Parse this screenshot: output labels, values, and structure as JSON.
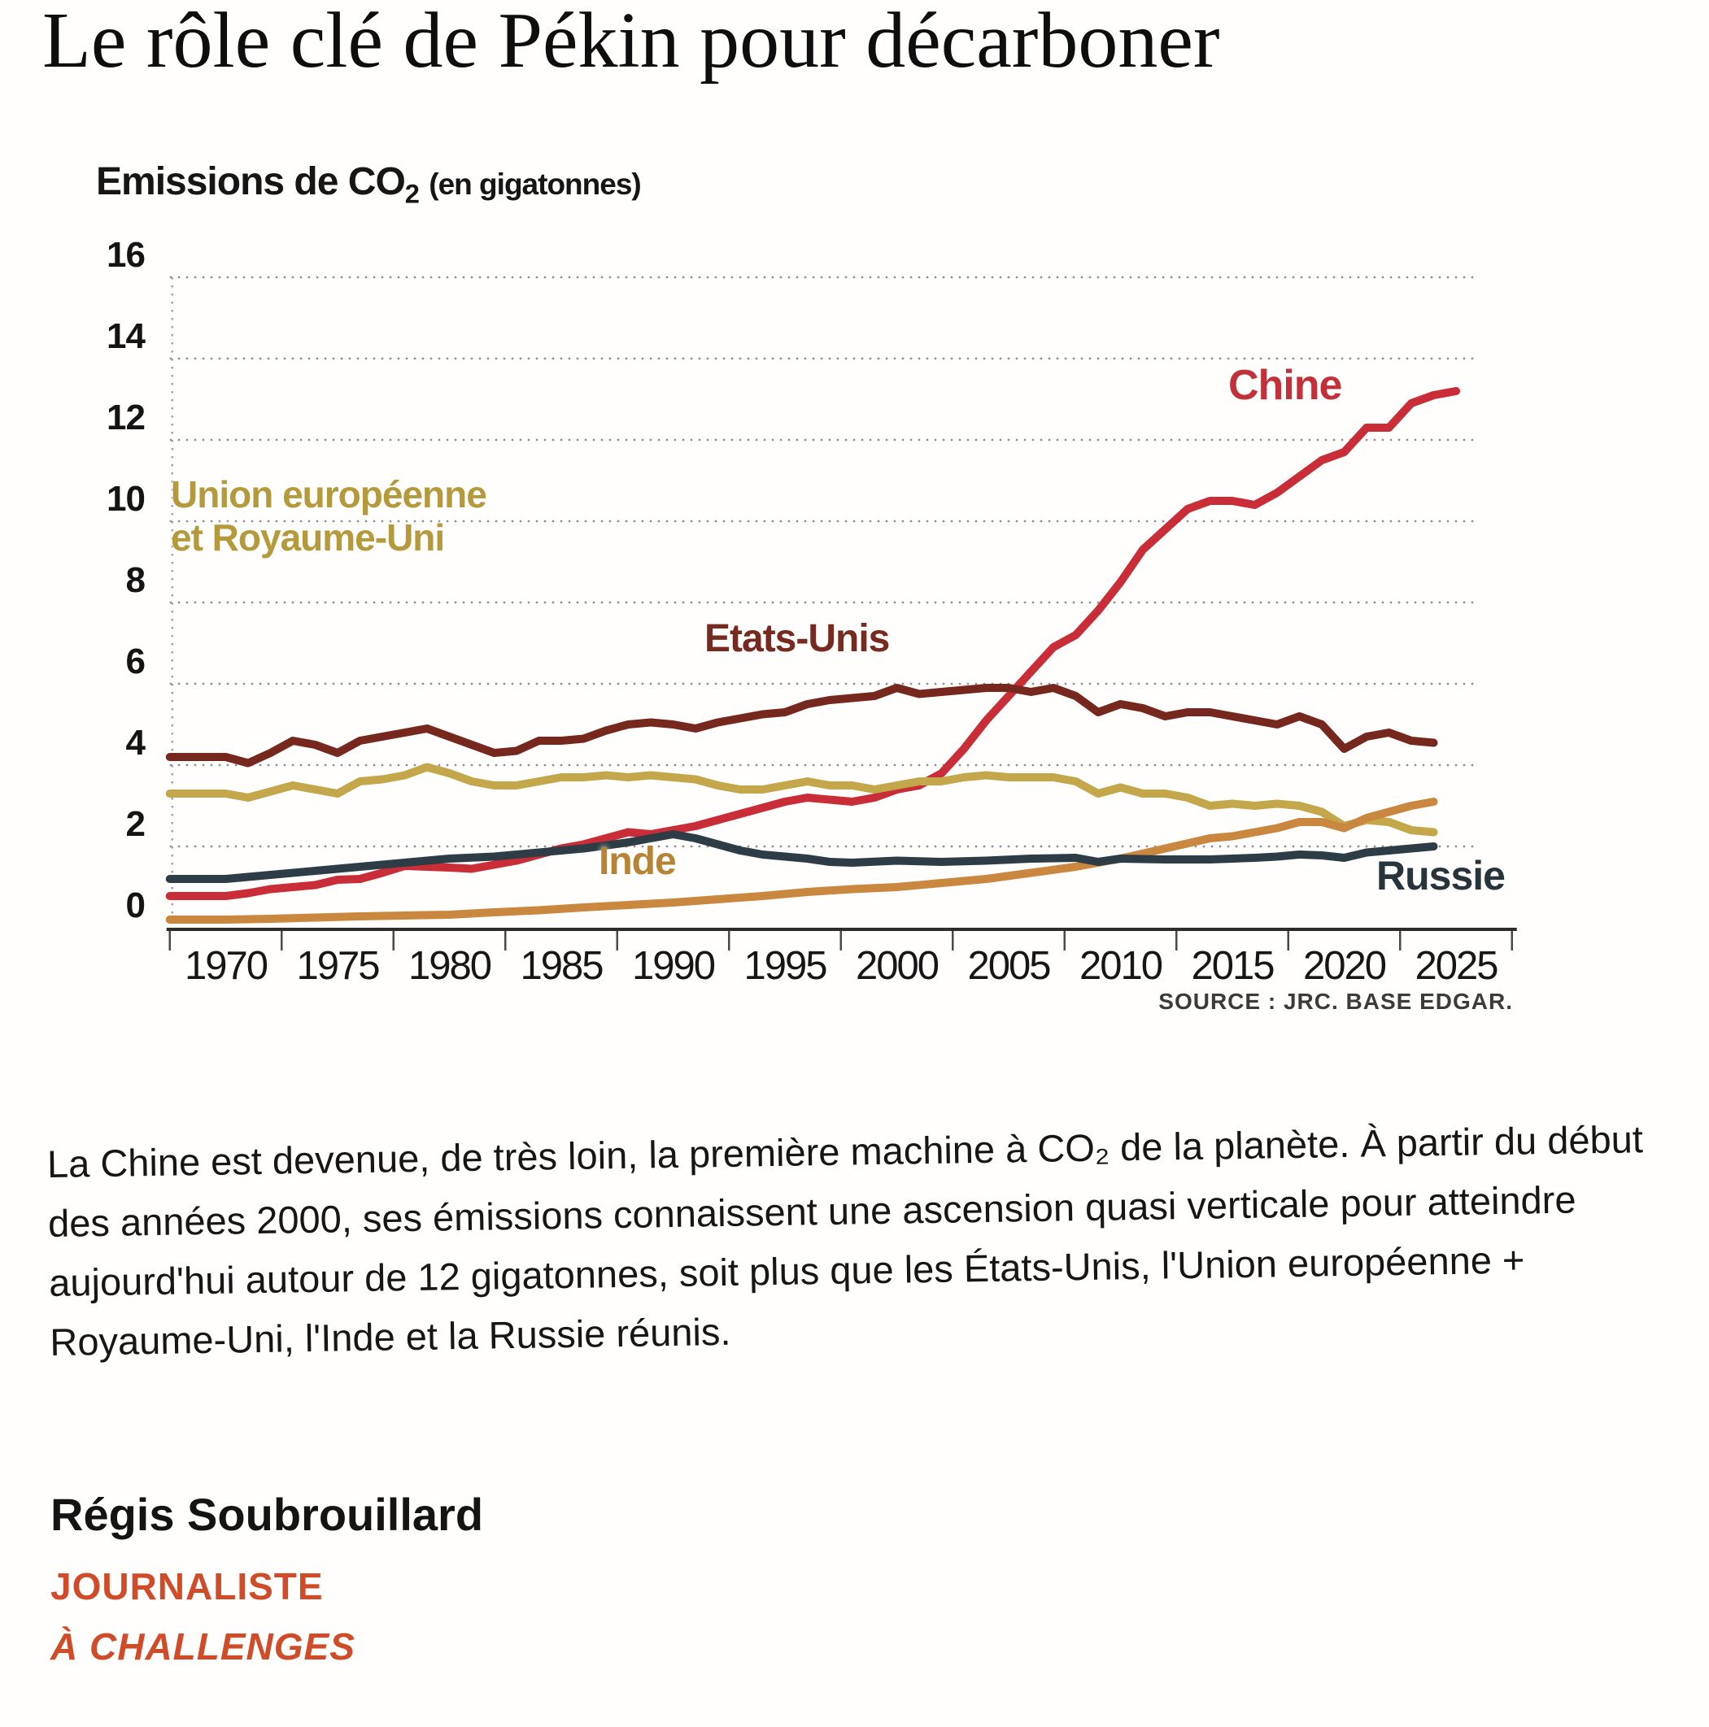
{
  "article": {
    "title": "Le rôle clé de Pékin pour décarboner",
    "paragraph": "La Chine est devenue, de très loin, la première machine à CO₂ de la planète. À partir du début des années 2000, ses émissions connaissent une ascension quasi verticale pour atteindre aujourd'hui autour de 12 gigatonnes, soit plus que les États-Unis, l'Union européenne + Royaume-Uni, l'Inde et la Russie réunis.",
    "author": {
      "name": "Régis Soubrouillard",
      "role": "JOURNALISTE",
      "affiliation": "À CHALLENGES"
    }
  },
  "chart": {
    "title_prefix": "Emissions de CO",
    "title_sub": "2",
    "unit_note": "(en gigatonnes)",
    "source": "SOURCE : JRC. BASE EDGAR."
  },
  "chart_data": {
    "type": "line",
    "title": "Emissions de CO2 (en gigatonnes)",
    "xlabel": "",
    "ylabel": "Emissions de CO2 (gigatonnes)",
    "ylim": [
      0,
      16
    ],
    "y_ticks": [
      0,
      2,
      4,
      6,
      8,
      10,
      12,
      14,
      16
    ],
    "x_ticks": [
      1970,
      1975,
      1980,
      1985,
      1990,
      1995,
      2000,
      2005,
      2010,
      2015,
      2020,
      2025
    ],
    "grid": "horizontal dotted",
    "legend_position": "inline labels on lines",
    "source": "SOURCE : JRC. BASE EDGAR.",
    "series": [
      {
        "id": "chine",
        "label": "Chine",
        "color": "#c92d37",
        "points": [
          [
            1970,
            0.78
          ],
          [
            1971,
            0.85
          ],
          [
            1972,
            0.95
          ],
          [
            1973,
            1.0
          ],
          [
            1974,
            1.05
          ],
          [
            1975,
            1.18
          ],
          [
            1976,
            1.2
          ],
          [
            1977,
            1.35
          ],
          [
            1978,
            1.52
          ],
          [
            1979,
            1.5
          ],
          [
            1980,
            1.48
          ],
          [
            1981,
            1.45
          ],
          [
            1982,
            1.55
          ],
          [
            1983,
            1.65
          ],
          [
            1984,
            1.8
          ],
          [
            1985,
            1.95
          ],
          [
            1986,
            2.05
          ],
          [
            1987,
            2.2
          ],
          [
            1988,
            2.35
          ],
          [
            1989,
            2.3
          ],
          [
            1990,
            2.4
          ],
          [
            1991,
            2.5
          ],
          [
            1992,
            2.65
          ],
          [
            1993,
            2.8
          ],
          [
            1994,
            2.95
          ],
          [
            1995,
            3.1
          ],
          [
            1996,
            3.2
          ],
          [
            1997,
            3.15
          ],
          [
            1998,
            3.1
          ],
          [
            1999,
            3.2
          ],
          [
            2000,
            3.4
          ],
          [
            2001,
            3.5
          ],
          [
            2002,
            3.8
          ],
          [
            2003,
            4.4
          ],
          [
            2004,
            5.1
          ],
          [
            2005,
            5.7
          ],
          [
            2006,
            6.3
          ],
          [
            2007,
            6.9
          ],
          [
            2008,
            7.2
          ],
          [
            2009,
            7.8
          ],
          [
            2010,
            8.5
          ],
          [
            2011,
            9.3
          ],
          [
            2012,
            9.8
          ],
          [
            2013,
            10.3
          ],
          [
            2014,
            10.5
          ],
          [
            2015,
            10.5
          ],
          [
            2016,
            10.4
          ],
          [
            2017,
            10.7
          ],
          [
            2018,
            11.1
          ],
          [
            2019,
            11.5
          ],
          [
            2020,
            11.7
          ],
          [
            2021,
            12.3
          ],
          [
            2022,
            12.3
          ],
          [
            2023,
            12.9
          ],
          [
            2024,
            13.1
          ],
          [
            2025,
            13.2
          ]
        ]
      },
      {
        "id": "etats-unis",
        "label": "Etats-Unis",
        "color": "#76281e",
        "points": [
          [
            1970,
            4.2
          ],
          [
            1971,
            4.05
          ],
          [
            1972,
            4.3
          ],
          [
            1973,
            4.6
          ],
          [
            1974,
            4.5
          ],
          [
            1975,
            4.3
          ],
          [
            1976,
            4.6
          ],
          [
            1977,
            4.7
          ],
          [
            1978,
            4.8
          ],
          [
            1979,
            4.9
          ],
          [
            1980,
            4.7
          ],
          [
            1981,
            4.5
          ],
          [
            1982,
            4.3
          ],
          [
            1983,
            4.35
          ],
          [
            1984,
            4.6
          ],
          [
            1985,
            4.6
          ],
          [
            1986,
            4.65
          ],
          [
            1987,
            4.85
          ],
          [
            1988,
            5.0
          ],
          [
            1989,
            5.05
          ],
          [
            1990,
            5.0
          ],
          [
            1991,
            4.9
          ],
          [
            1992,
            5.05
          ],
          [
            1993,
            5.15
          ],
          [
            1994,
            5.25
          ],
          [
            1995,
            5.3
          ],
          [
            1996,
            5.5
          ],
          [
            1997,
            5.6
          ],
          [
            1998,
            5.65
          ],
          [
            1999,
            5.7
          ],
          [
            2000,
            5.9
          ],
          [
            2001,
            5.75
          ],
          [
            2002,
            5.8
          ],
          [
            2003,
            5.85
          ],
          [
            2004,
            5.9
          ],
          [
            2005,
            5.9
          ],
          [
            2006,
            5.8
          ],
          [
            2007,
            5.9
          ],
          [
            2008,
            5.7
          ],
          [
            2009,
            5.3
          ],
          [
            2010,
            5.5
          ],
          [
            2011,
            5.4
          ],
          [
            2012,
            5.2
          ],
          [
            2013,
            5.3
          ],
          [
            2014,
            5.3
          ],
          [
            2015,
            5.2
          ],
          [
            2016,
            5.1
          ],
          [
            2017,
            5.0
          ],
          [
            2018,
            5.2
          ],
          [
            2019,
            5.0
          ],
          [
            2020,
            4.4
          ],
          [
            2021,
            4.7
          ],
          [
            2022,
            4.8
          ],
          [
            2023,
            4.6
          ],
          [
            2024,
            4.55
          ]
        ]
      },
      {
        "id": "ue-royaume-uni",
        "label": "Union européenne\net Royaume-Uni",
        "color": "#c3a74a",
        "points": [
          [
            1970,
            3.3
          ],
          [
            1971,
            3.2
          ],
          [
            1972,
            3.35
          ],
          [
            1973,
            3.5
          ],
          [
            1974,
            3.4
          ],
          [
            1975,
            3.3
          ],
          [
            1976,
            3.6
          ],
          [
            1977,
            3.65
          ],
          [
            1978,
            3.75
          ],
          [
            1979,
            3.95
          ],
          [
            1980,
            3.8
          ],
          [
            1981,
            3.6
          ],
          [
            1982,
            3.5
          ],
          [
            1983,
            3.5
          ],
          [
            1984,
            3.6
          ],
          [
            1985,
            3.7
          ],
          [
            1986,
            3.7
          ],
          [
            1987,
            3.75
          ],
          [
            1988,
            3.7
          ],
          [
            1989,
            3.75
          ],
          [
            1990,
            3.7
          ],
          [
            1991,
            3.65
          ],
          [
            1992,
            3.5
          ],
          [
            1993,
            3.4
          ],
          [
            1994,
            3.4
          ],
          [
            1995,
            3.5
          ],
          [
            1996,
            3.6
          ],
          [
            1997,
            3.5
          ],
          [
            1998,
            3.5
          ],
          [
            1999,
            3.4
          ],
          [
            2000,
            3.5
          ],
          [
            2001,
            3.6
          ],
          [
            2002,
            3.6
          ],
          [
            2003,
            3.7
          ],
          [
            2004,
            3.75
          ],
          [
            2005,
            3.7
          ],
          [
            2006,
            3.7
          ],
          [
            2007,
            3.7
          ],
          [
            2008,
            3.6
          ],
          [
            2009,
            3.3
          ],
          [
            2010,
            3.45
          ],
          [
            2011,
            3.3
          ],
          [
            2012,
            3.3
          ],
          [
            2013,
            3.2
          ],
          [
            2014,
            3.0
          ],
          [
            2015,
            3.05
          ],
          [
            2016,
            3.0
          ],
          [
            2017,
            3.05
          ],
          [
            2018,
            3.0
          ],
          [
            2019,
            2.85
          ],
          [
            2020,
            2.5
          ],
          [
            2021,
            2.65
          ],
          [
            2022,
            2.6
          ],
          [
            2023,
            2.4
          ],
          [
            2024,
            2.35
          ]
        ]
      },
      {
        "id": "inde",
        "label": "Inde",
        "color": "#c9873f",
        "points": [
          [
            1970,
            0.2
          ],
          [
            1972,
            0.22
          ],
          [
            1974,
            0.25
          ],
          [
            1976,
            0.28
          ],
          [
            1978,
            0.3
          ],
          [
            1980,
            0.32
          ],
          [
            1982,
            0.38
          ],
          [
            1984,
            0.43
          ],
          [
            1986,
            0.5
          ],
          [
            1988,
            0.56
          ],
          [
            1990,
            0.62
          ],
          [
            1992,
            0.7
          ],
          [
            1994,
            0.78
          ],
          [
            1996,
            0.88
          ],
          [
            1998,
            0.95
          ],
          [
            2000,
            1.0
          ],
          [
            2002,
            1.1
          ],
          [
            2004,
            1.2
          ],
          [
            2006,
            1.35
          ],
          [
            2008,
            1.5
          ],
          [
            2010,
            1.7
          ],
          [
            2012,
            1.95
          ],
          [
            2014,
            2.2
          ],
          [
            2015,
            2.25
          ],
          [
            2016,
            2.35
          ],
          [
            2017,
            2.45
          ],
          [
            2018,
            2.6
          ],
          [
            2019,
            2.6
          ],
          [
            2020,
            2.45
          ],
          [
            2021,
            2.7
          ],
          [
            2022,
            2.85
          ],
          [
            2023,
            3.0
          ],
          [
            2024,
            3.1
          ]
        ]
      },
      {
        "id": "russie",
        "label": "Russie",
        "color": "#2e3d45",
        "points": [
          [
            1970,
            1.2
          ],
          [
            1972,
            1.3
          ],
          [
            1974,
            1.4
          ],
          [
            1976,
            1.5
          ],
          [
            1978,
            1.6
          ],
          [
            1980,
            1.7
          ],
          [
            1982,
            1.75
          ],
          [
            1984,
            1.85
          ],
          [
            1986,
            1.95
          ],
          [
            1988,
            2.1
          ],
          [
            1990,
            2.3
          ],
          [
            1991,
            2.2
          ],
          [
            1992,
            2.05
          ],
          [
            1993,
            1.9
          ],
          [
            1994,
            1.8
          ],
          [
            1995,
            1.75
          ],
          [
            1996,
            1.7
          ],
          [
            1997,
            1.62
          ],
          [
            1998,
            1.6
          ],
          [
            2000,
            1.65
          ],
          [
            2002,
            1.62
          ],
          [
            2004,
            1.65
          ],
          [
            2006,
            1.7
          ],
          [
            2008,
            1.72
          ],
          [
            2009,
            1.62
          ],
          [
            2010,
            1.7
          ],
          [
            2012,
            1.68
          ],
          [
            2014,
            1.68
          ],
          [
            2015,
            1.7
          ],
          [
            2016,
            1.72
          ],
          [
            2017,
            1.75
          ],
          [
            2018,
            1.8
          ],
          [
            2019,
            1.78
          ],
          [
            2020,
            1.72
          ],
          [
            2021,
            1.85
          ],
          [
            2022,
            1.9
          ],
          [
            2023,
            1.95
          ],
          [
            2024,
            2.0
          ]
        ]
      }
    ]
  }
}
